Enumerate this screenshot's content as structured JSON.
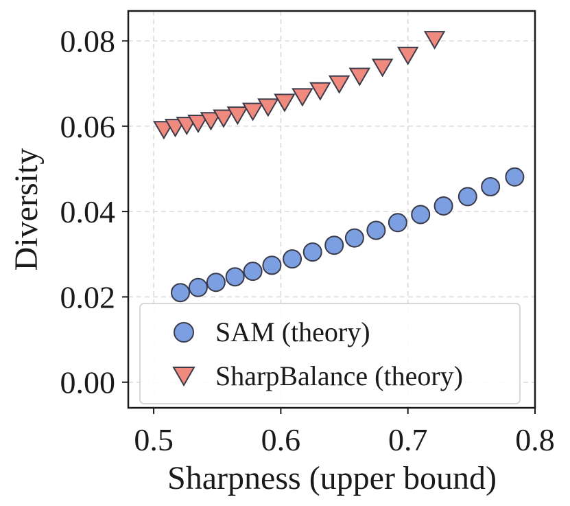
{
  "chart_data": {
    "type": "scatter",
    "xlabel": "Sharpness (upper bound)",
    "ylabel": "Diversity",
    "xlim": [
      0.48,
      0.8
    ],
    "ylim": [
      -0.006,
      0.087
    ],
    "xticks": [
      0.5,
      0.6,
      0.7,
      0.8
    ],
    "xtick_labels": [
      "0.5",
      "0.6",
      "0.7",
      "0.8"
    ],
    "yticks": [
      0.0,
      0.02,
      0.04,
      0.06,
      0.08
    ],
    "ytick_labels": [
      "0.00",
      "0.02",
      "0.04",
      "0.06",
      "0.08"
    ],
    "grid": true,
    "legend_position": "bottom-right",
    "series": [
      {
        "name": "SAM (theory)",
        "marker": "circle",
        "color": "#7b9fe0",
        "x": [
          0.521,
          0.535,
          0.549,
          0.564,
          0.578,
          0.593,
          0.609,
          0.625,
          0.642,
          0.658,
          0.675,
          0.692,
          0.71,
          0.728,
          0.747,
          0.765,
          0.784
        ],
        "y": [
          0.021,
          0.0222,
          0.0234,
          0.0247,
          0.026,
          0.0274,
          0.0289,
          0.0305,
          0.0321,
          0.0338,
          0.0356,
          0.0374,
          0.0393,
          0.0413,
          0.0435,
          0.0458,
          0.0481
        ]
      },
      {
        "name": "SharpBalance (theory)",
        "marker": "triangle-down",
        "color": "#f08a7e",
        "x": [
          0.508,
          0.517,
          0.526,
          0.535,
          0.545,
          0.555,
          0.566,
          0.578,
          0.59,
          0.603,
          0.617,
          0.631,
          0.646,
          0.662,
          0.68,
          0.7,
          0.721
        ],
        "y": [
          0.0596,
          0.0601,
          0.0606,
          0.0611,
          0.0617,
          0.0623,
          0.063,
          0.0639,
          0.0649,
          0.066,
          0.0673,
          0.0687,
          0.0703,
          0.0721,
          0.0742,
          0.077,
          0.0807
        ]
      }
    ]
  }
}
